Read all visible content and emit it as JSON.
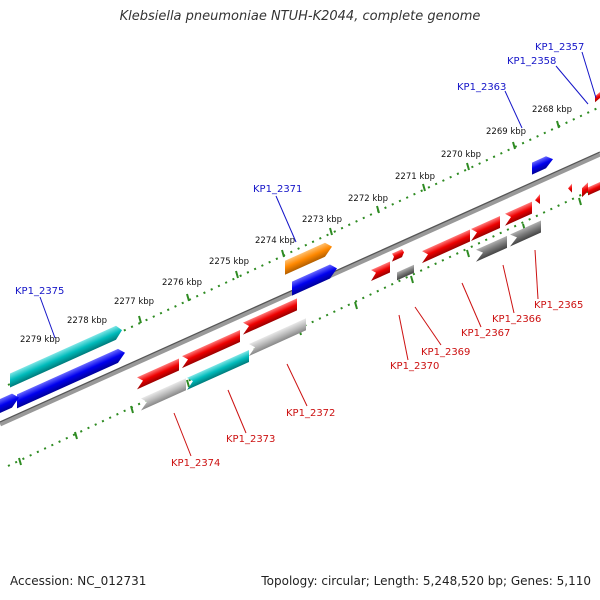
{
  "title": "Klebsiella pneumoniae NTUH-K2044, complete genome",
  "footer": {
    "accession": "Accession: NC_012731",
    "summary": "Topology: circular; Length: 5,248,520 bp; Genes: 5,110"
  },
  "colors": {
    "backbone": "#777777",
    "tick": "#2e8b22",
    "label_plus": "#1515c8",
    "label_minus": "#cc1111",
    "red": "#ee0000",
    "blue": "#0000ee",
    "cyan": "#00bbbb",
    "orange": "#ff8800",
    "gray": "#777777",
    "lightgray": "#bbbbbb"
  },
  "kbp_labels": [
    "2268 kbp",
    "2269 kbp",
    "2270 kbp",
    "2271 kbp",
    "2272 kbp",
    "2273 kbp",
    "2274 kbp",
    "2275 kbp",
    "2276 kbp",
    "2277 kbp",
    "2278 kbp",
    "2279 kbp"
  ],
  "gene_labels_plus": [
    "KP1_2357",
    "KP1_2358",
    "KP1_2363",
    "KP1_2371",
    "KP1_2375"
  ],
  "gene_labels_minus": [
    "KP1_2365",
    "KP1_2366",
    "KP1_2367",
    "KP1_2369",
    "KP1_2370",
    "KP1_2372",
    "KP1_2373",
    "KP1_2374"
  ]
}
